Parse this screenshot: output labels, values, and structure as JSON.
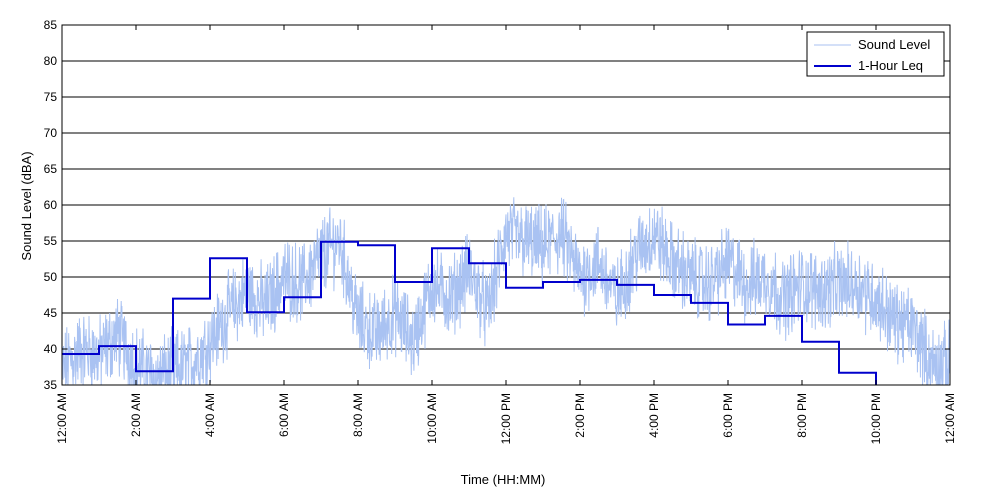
{
  "chart_data": {
    "type": "line",
    "title": "",
    "xlabel": "Time (HH:MM)",
    "ylabel": "Sound Level (dBA)",
    "ylim": [
      35,
      85
    ],
    "xlim_hours": [
      0,
      24
    ],
    "yticks": [
      35,
      40,
      45,
      50,
      55,
      60,
      65,
      70,
      75,
      80,
      85
    ],
    "xticks": [
      "12:00 AM",
      "2:00 AM",
      "4:00 AM",
      "6:00 AM",
      "8:00 AM",
      "10:00 AM",
      "12:00 PM",
      "2:00 PM",
      "4:00 PM",
      "6:00 PM",
      "8:00 PM",
      "10:00 PM",
      "12:00 AM"
    ],
    "grid": "horizontal",
    "legend_position": "top-right",
    "series": [
      {
        "name": "Sound Level",
        "color": "#a9c2f2",
        "style": "thin noisy line",
        "x_start": "12:00 AM",
        "x_step_hours": 0.5,
        "values": [
          37,
          40,
          39,
          42,
          38,
          36,
          37,
          38,
          41,
          45,
          48,
          46,
          50,
          49,
          53,
          55,
          44,
          42,
          45,
          41,
          49,
          47,
          51,
          45,
          56,
          55,
          54,
          56,
          50,
          52,
          47,
          53,
          56,
          52,
          50,
          49,
          52,
          49,
          50,
          47,
          49,
          48,
          49,
          49,
          47,
          44,
          43,
          38
        ]
      },
      {
        "name": "1-Hour Leq",
        "color": "#0000cc",
        "style": "step",
        "x_start": "12:00 AM",
        "x_step_hours": 1,
        "values": [
          39.3,
          40.4,
          36.9,
          47.0,
          52.6,
          45.1,
          47.2,
          54.9,
          54.4,
          49.3,
          54.0,
          51.9,
          48.5,
          49.3,
          49.6,
          48.9,
          47.5,
          46.4,
          43.4,
          44.6,
          41.0,
          36.7,
          34.0,
          33.5
        ]
      }
    ]
  }
}
